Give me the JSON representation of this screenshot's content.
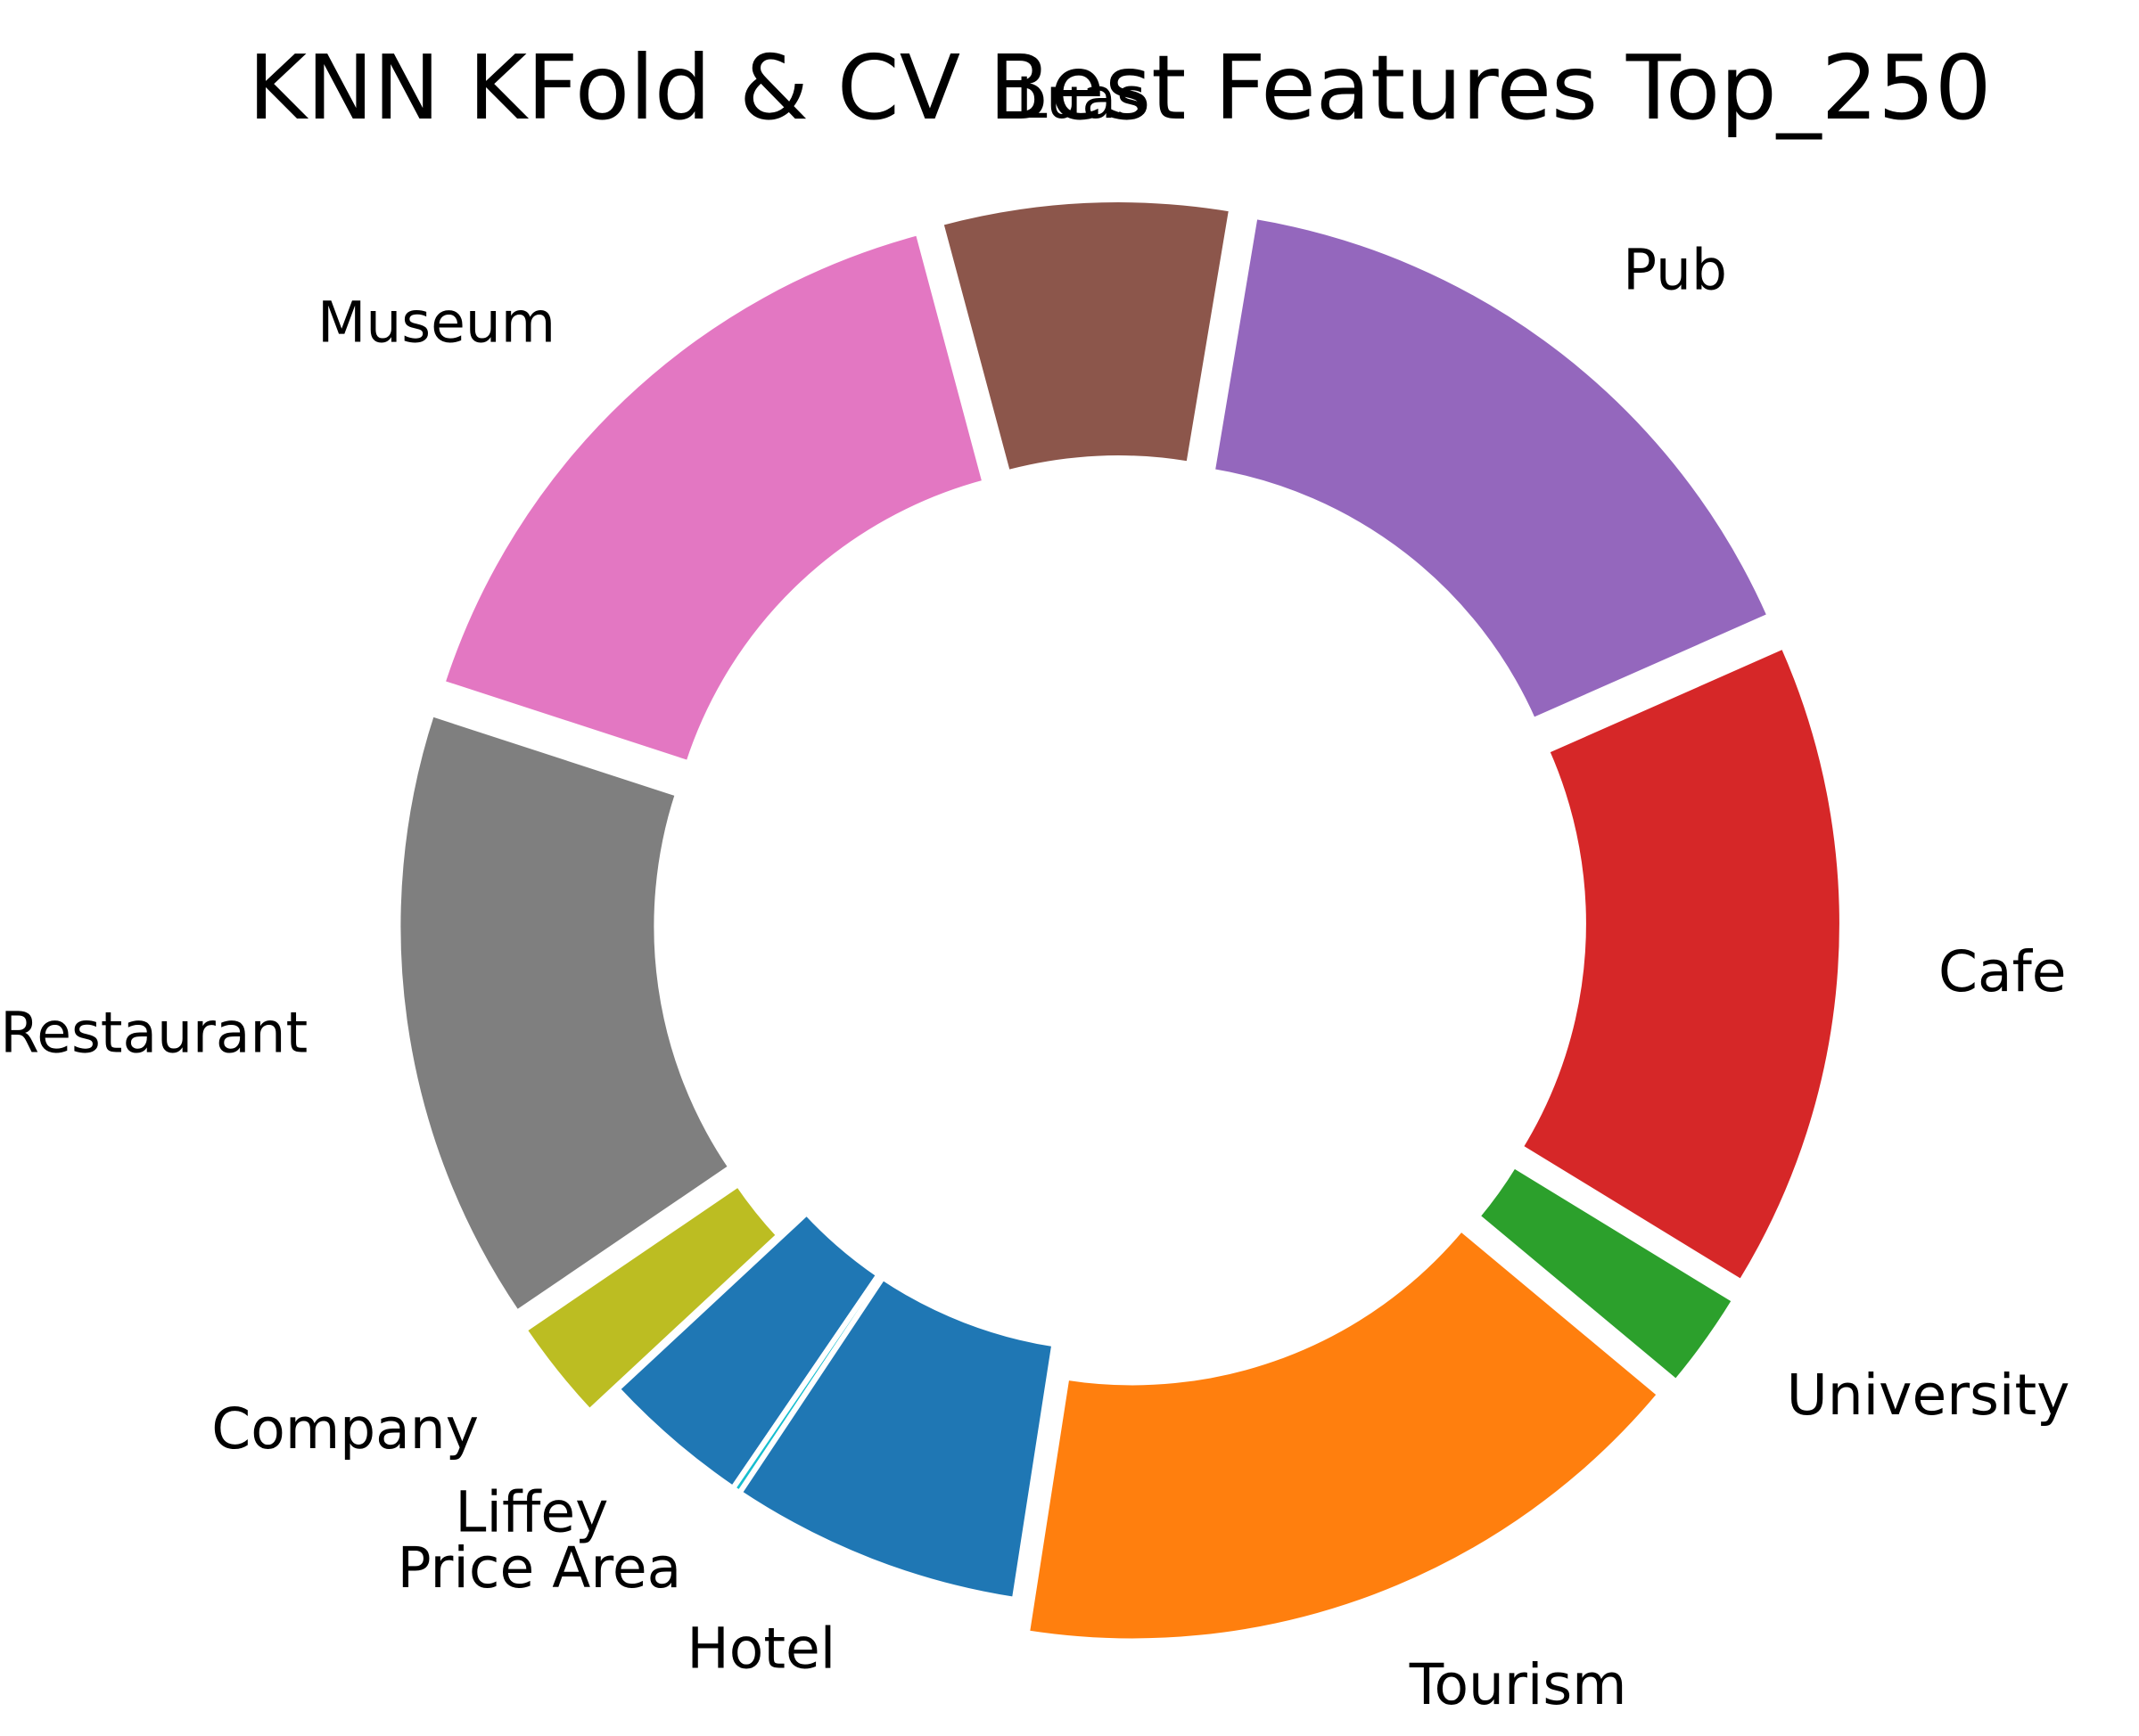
{
  "chart_data": {
    "type": "pie",
    "style": "donut-exploded",
    "title": "KNN KFold & CV Best Features Top_250",
    "legend": "none",
    "categories": [
      "Luas",
      "Museum",
      "Restaurant",
      "Company",
      "Liffey",
      "Price Area",
      "Hotel",
      "Tourism",
      "University",
      "Cafe",
      "Pub"
    ],
    "values": [
      7.3,
      17.0,
      15.6,
      2.6,
      3.8,
      0.2,
      7.4,
      17.6,
      2.5,
      16.5,
      16.9
    ],
    "colors": [
      "#8c564b",
      "#e377c2",
      "#7f7f7f",
      "#bcbd22",
      "#1f77b4",
      "#17becf",
      "#1f77b4",
      "#ff7f0e",
      "#2ca02c",
      "#d62728",
      "#9467bd"
    ],
    "explode": [
      true,
      true,
      true,
      true,
      false,
      false,
      false,
      true,
      true,
      true,
      true
    ]
  }
}
